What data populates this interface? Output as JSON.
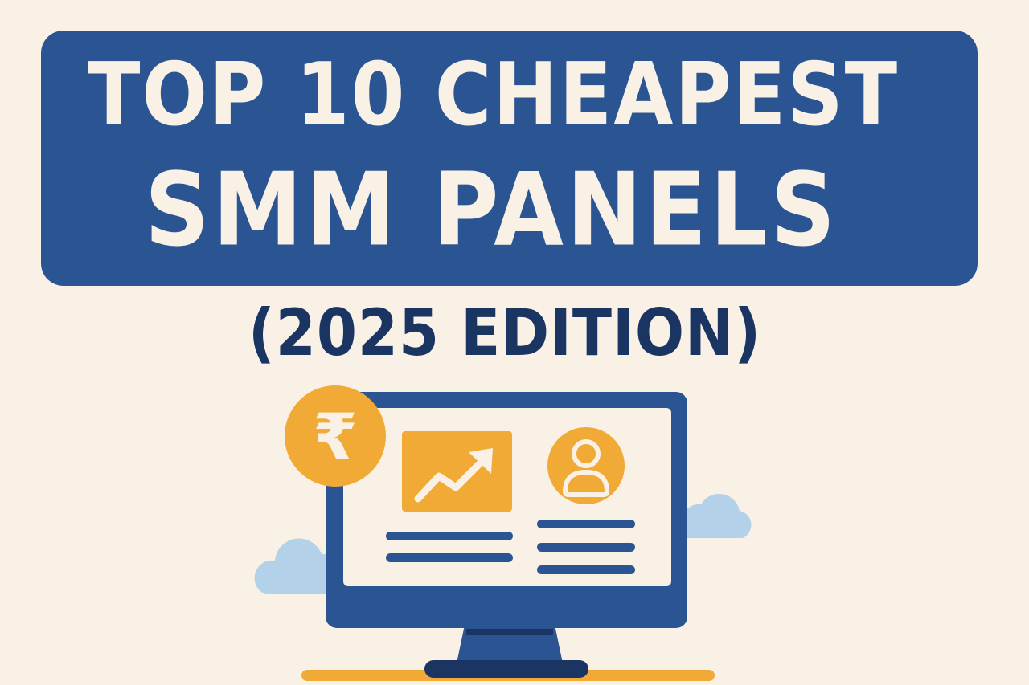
{
  "title": {
    "line1": "TOP 10 CHEAPEST",
    "line2": "SMM PANELS"
  },
  "subtitle": "(2025 EDITION)",
  "illustration": {
    "currency_symbol": "₹",
    "icons": [
      "rupee-coin-icon",
      "trending-up-chart-icon",
      "user-profile-icon",
      "cloud-icon"
    ]
  },
  "colors": {
    "background": "#f9f1e6",
    "banner": "#2b5592",
    "banner_text": "#f9f1e6",
    "subtitle_text": "#1b3563",
    "accent_orange": "#f2aa36",
    "cloud": "#b3d2ea"
  }
}
